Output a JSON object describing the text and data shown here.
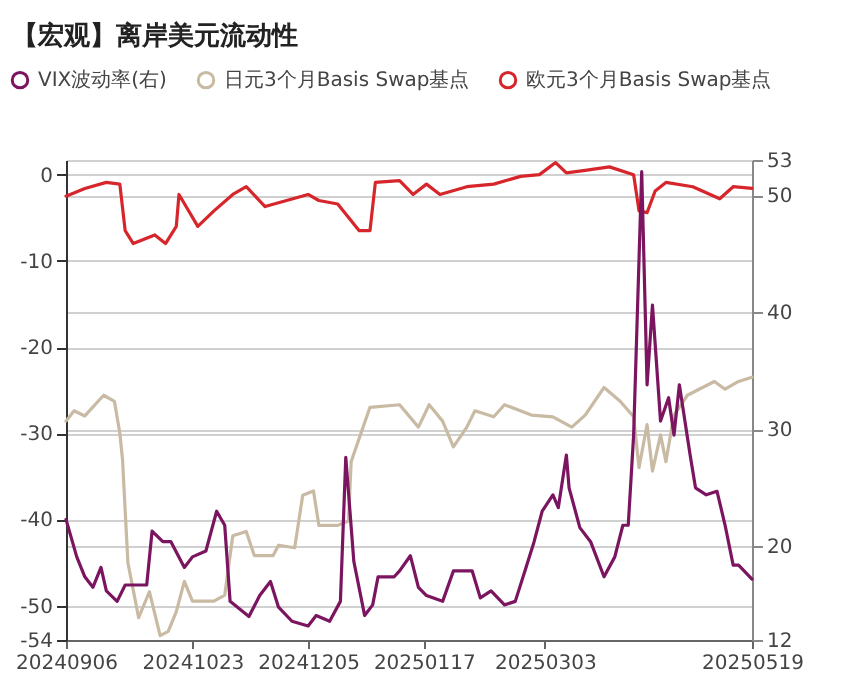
{
  "chart_data": {
    "type": "line",
    "title": "【宏观】离岸美元流动性",
    "xlim": [
      "2024-09-06",
      "2025-05-19"
    ],
    "xticks": [
      {
        "value": "2024-09-06",
        "label": "20240906"
      },
      {
        "value": "2024-10-23",
        "label": "20241023"
      },
      {
        "value": "2024-12-05",
        "label": "20241205"
      },
      {
        "value": "2025-01-17",
        "label": "20250117"
      },
      {
        "value": "2025-03-03",
        "label": "20250303"
      },
      {
        "value": "2025-05-19",
        "label": "20250519"
      }
    ],
    "ylim": [
      -54,
      1.7
    ],
    "yticks": [
      -54,
      -50,
      -40,
      -30,
      -20,
      -10,
      0
    ],
    "y2lim": [
      12,
      53
    ],
    "y2ticks": [
      12,
      20,
      30,
      40,
      50,
      53
    ],
    "grid": "y",
    "legend": "top left",
    "series": [
      {
        "name": "VIX波动率(右)",
        "color": "#7b1560",
        "axis": "y2",
        "x": [
          "2024-09-06",
          "2024-09-10",
          "2024-09-13",
          "2024-09-16",
          "2024-09-19",
          "2024-09-21",
          "2024-09-25",
          "2024-09-28",
          "2024-10-06",
          "2024-10-08",
          "2024-10-12",
          "2024-10-15",
          "2024-10-20",
          "2024-10-23",
          "2024-10-28",
          "2024-11-01",
          "2024-11-04",
          "2024-11-06",
          "2024-11-13",
          "2024-11-17",
          "2024-11-21",
          "2024-11-24",
          "2024-11-29",
          "2024-12-05",
          "2024-12-08",
          "2024-12-13",
          "2024-12-17",
          "2024-12-19",
          "2024-12-22",
          "2024-12-26",
          "2024-12-29",
          "2024-12-31",
          "2025-01-06",
          "2025-01-08",
          "2025-01-12",
          "2025-01-15",
          "2025-01-18",
          "2025-01-24",
          "2025-01-28",
          "2025-02-04",
          "2025-02-07",
          "2025-02-11",
          "2025-02-16",
          "2025-02-20",
          "2025-02-24",
          "2025-02-27",
          "2025-03-02",
          "2025-03-06",
          "2025-03-08",
          "2025-03-11",
          "2025-03-12",
          "2025-03-16",
          "2025-03-20",
          "2025-03-25",
          "2025-03-29",
          "2025-04-01",
          "2025-04-03",
          "2025-04-05",
          "2025-04-08",
          "2025-04-10",
          "2025-04-12",
          "2025-04-15",
          "2025-04-18",
          "2025-04-20",
          "2025-04-22",
          "2025-04-26",
          "2025-04-28",
          "2025-05-02",
          "2025-05-06",
          "2025-05-09",
          "2025-05-12",
          "2025-05-14",
          "2025-05-19"
        ],
        "values": [
          22.3,
          19.1,
          17.4,
          16.5,
          18.2,
          16.2,
          15.3,
          16.7,
          16.7,
          21.3,
          20.4,
          20.4,
          18.2,
          19.1,
          19.6,
          23,
          21.8,
          15.3,
          14,
          15.8,
          17,
          14.8,
          13.6,
          13.2,
          14.1,
          13.6,
          15.3,
          27.6,
          18.7,
          14.1,
          15,
          17.4,
          17.4,
          17.9,
          19.2,
          16.5,
          15.8,
          15.3,
          17.9,
          17.9,
          15.6,
          16.2,
          15,
          15.3,
          18.2,
          20.4,
          23,
          24.4,
          23.3,
          27.8,
          25,
          21.6,
          20.4,
          17.4,
          19.1,
          21.8,
          21.8,
          29.5,
          52,
          33.8,
          40.6,
          30.7,
          32.7,
          29.5,
          33.8,
          27.8,
          25,
          24.4,
          24.7,
          21.8,
          18.4,
          18.4,
          17.2
        ]
      },
      {
        "name": "日元3个月Basis Swap基点",
        "color": "#c9baa3",
        "x": [
          "2024-09-06",
          "2024-09-09",
          "2024-09-13",
          "2024-09-20",
          "2024-09-24",
          "2024-09-26",
          "2024-09-27",
          "2024-09-29",
          "2024-10-03",
          "2024-10-07",
          "2024-10-11",
          "2024-10-14",
          "2024-10-17",
          "2024-10-20",
          "2024-10-23",
          "2024-10-31",
          "2024-11-04",
          "2024-11-07",
          "2024-11-12",
          "2024-11-15",
          "2024-11-22",
          "2024-11-24",
          "2024-11-30",
          "2024-12-03",
          "2024-12-07",
          "2024-12-09",
          "2024-12-16",
          "2024-12-20",
          "2024-12-21",
          "2024-12-28",
          "2025-01-08",
          "2025-01-15",
          "2025-01-19",
          "2025-01-24",
          "2025-01-28",
          "2025-02-02",
          "2025-02-05",
          "2025-02-12",
          "2025-02-16",
          "2025-02-26",
          "2025-03-06",
          "2025-03-13",
          "2025-03-18",
          "2025-03-25",
          "2025-03-31",
          "2025-04-05",
          "2025-04-07",
          "2025-04-10",
          "2025-04-12",
          "2025-04-15",
          "2025-04-17",
          "2025-04-20",
          "2025-04-25",
          "2025-05-05",
          "2025-05-09",
          "2025-05-14",
          "2025-05-19"
        ],
        "values": [
          -28.6,
          -27.4,
          -28,
          -25.6,
          -26.3,
          -30,
          -33,
          -45,
          -51.4,
          -48.4,
          -53.5,
          -53,
          -50.7,
          -47.2,
          -49.5,
          -49.5,
          -48.8,
          -41.9,
          -41.4,
          -44.2,
          -44.2,
          -43,
          -43.3,
          -37.2,
          -36.7,
          -40.7,
          -40.7,
          -40.2,
          -33.3,
          -27,
          -26.7,
          -29.3,
          -26.7,
          -28.6,
          -31.6,
          -29.3,
          -27.4,
          -28.1,
          -26.7,
          -27.9,
          -28.1,
          -29.3,
          -27.9,
          -24.7,
          -26.3,
          -28.1,
          -34,
          -29,
          -34.4,
          -30.2,
          -33.3,
          -27.9,
          -25.6,
          -24,
          -24.9,
          -24,
          -23.5
        ]
      },
      {
        "name": "欧元3个月Basis Swap基点",
        "color": "#d7262b",
        "x": [
          "2024-09-06",
          "2024-09-13",
          "2024-09-21",
          "2024-09-26",
          "2024-09-28",
          "2024-10-01",
          "2024-10-05",
          "2024-10-09",
          "2024-10-13",
          "2024-10-17",
          "2024-10-18",
          "2024-10-25",
          "2024-10-31",
          "2024-11-07",
          "2024-11-12",
          "2024-11-19",
          "2024-11-27",
          "2024-12-05",
          "2024-12-09",
          "2024-12-16",
          "2024-12-24",
          "2024-12-28",
          "2024-12-30",
          "2025-01-08",
          "2025-01-13",
          "2025-01-18",
          "2025-01-23",
          "2025-02-02",
          "2025-02-12",
          "2025-02-22",
          "2025-03-01",
          "2025-03-07",
          "2025-03-11",
          "2025-03-18",
          "2025-03-27",
          "2025-04-05",
          "2025-04-07",
          "2025-04-10",
          "2025-04-13",
          "2025-04-17",
          "2025-04-27",
          "2025-05-07",
          "2025-05-12",
          "2025-05-19"
        ],
        "values": [
          -2.5,
          -1.6,
          -0.9,
          -1.1,
          -6.5,
          -8,
          -7.5,
          -7,
          -8,
          -6,
          -2.3,
          -6,
          -4.2,
          -2.3,
          -1.4,
          -3.7,
          -3,
          -2.3,
          -3,
          -3.4,
          -6.5,
          -6.5,
          -0.9,
          -0.7,
          -2.3,
          -1.1,
          -2.3,
          -1.4,
          -1.1,
          -0.2,
          0,
          1.4,
          0.2,
          0.5,
          0.9,
          0,
          -4.2,
          -4.4,
          -1.9,
          -0.9,
          -1.4,
          -2.8,
          -1.4,
          -1.6
        ]
      }
    ]
  }
}
